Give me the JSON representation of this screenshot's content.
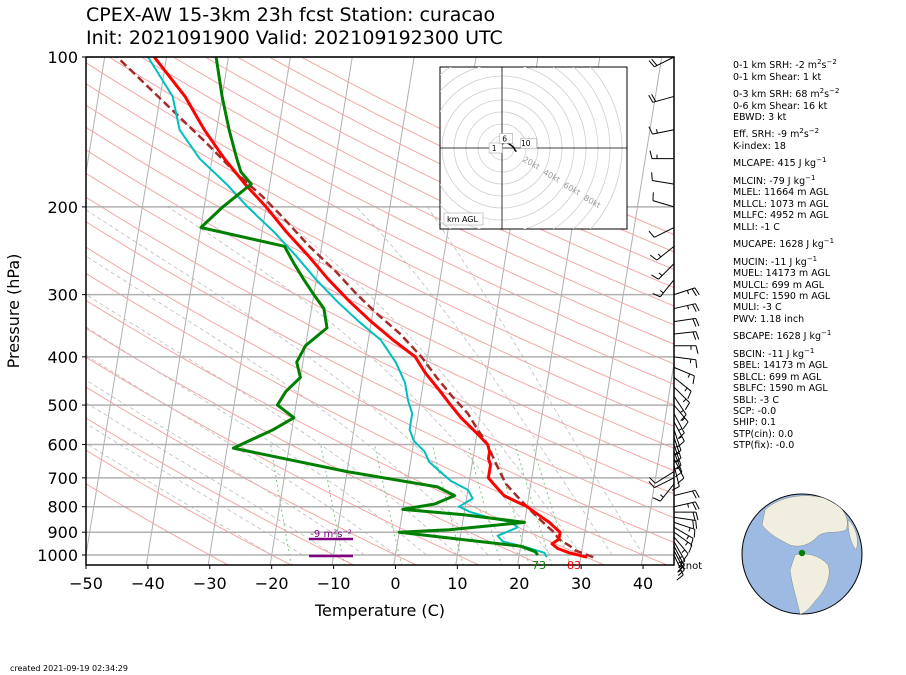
{
  "title": {
    "line1": "CPEX-AW 15-3km  23h fcst  Station: curacao",
    "line2": "Init: 2021091900  Valid: 202109192300 UTC"
  },
  "footer": "created 2021-09-19 02:34:29",
  "colors": {
    "temperature": "#ff0000",
    "dewpoint": "#008000",
    "wetbulb": "#00bfbf",
    "parcel": "#a52a2a",
    "srh_bar": "#800080",
    "hodo_line": "#000000",
    "globe_ocean": "#9dbbe2",
    "globe_land": "#f0efdf",
    "station_dot": "#008000"
  },
  "indices": [
    {
      "label": "0-1 km SRH: -2 m",
      "sup": "2",
      "tail": "s",
      "sup2": "−2",
      "gap": false
    },
    {
      "label": "0-1 km Shear: 1 kt",
      "gap": false
    },
    {
      "label": "0-3 km SRH: 68 m",
      "sup": "2",
      "tail": "s",
      "sup2": "−2",
      "gap": true
    },
    {
      "label": "0-6 km Shear: 16 kt",
      "gap": false
    },
    {
      "label": "EBWD: 3 kt",
      "gap": false
    },
    {
      "label": "Eff. SRH: -9 m",
      "sup": "2",
      "tail": "s",
      "sup2": "−2",
      "gap": true
    },
    {
      "label": "K-index: 18",
      "gap": false
    },
    {
      "label": "MLCAPE: 415 J kg",
      "sup": "−1",
      "gap": true
    },
    {
      "label": "MLCIN: -79 J kg",
      "sup": "−1",
      "gap": true
    },
    {
      "label": "MLEL: 11664 m AGL",
      "gap": false
    },
    {
      "label": "MLLCL: 1073 m AGL",
      "gap": false
    },
    {
      "label": "MLLFC: 4952 m AGL",
      "gap": false
    },
    {
      "label": "MLLI: -1 C",
      "gap": false
    },
    {
      "label": "MUCAPE: 1628 J kg",
      "sup": "−1",
      "gap": true
    },
    {
      "label": "MUCIN: -11 J kg",
      "sup": "−1",
      "gap": true
    },
    {
      "label": "MUEL: 14173 m AGL",
      "gap": false
    },
    {
      "label": "MULCL: 699 m AGL",
      "gap": false
    },
    {
      "label": "MULFC: 1590 m AGL",
      "gap": false
    },
    {
      "label": "MULI: -3 C",
      "gap": false
    },
    {
      "label": "PWV: 1.18 inch",
      "gap": false
    },
    {
      "label": "SBCAPE: 1628 J kg",
      "sup": "−1",
      "gap": true
    },
    {
      "label": "SBCIN: -11 J kg",
      "sup": "−1",
      "gap": true
    },
    {
      "label": "SBEL: 14173 m AGL",
      "gap": false
    },
    {
      "label": "SBLCL: 699 m AGL",
      "gap": false
    },
    {
      "label": "SBLFC: 1590 m AGL",
      "gap": false
    },
    {
      "label": "SBLI: -3 C",
      "gap": false
    },
    {
      "label": "SCP: -0.0",
      "gap": false
    },
    {
      "label": "SHIP: 0.1",
      "gap": false
    },
    {
      "label": "STP(cin): 0.0",
      "gap": false
    },
    {
      "label": "STP(fix): -0.0",
      "gap": false
    }
  ],
  "chart_data": {
    "type": "line",
    "xlabel": "Temperature (C)",
    "ylabel": "Pressure (hPa)",
    "xlim": [
      -50,
      45
    ],
    "ylim": [
      1050,
      100
    ],
    "y_scale": "log",
    "x_ticks": [
      -50,
      -40,
      -30,
      -20,
      -10,
      0,
      10,
      20,
      30,
      40
    ],
    "x_tick_labels": [
      "−50",
      "−40",
      "−30",
      "−20",
      "−10",
      "0",
      "10",
      "20",
      "30",
      "40"
    ],
    "y_ticks": [
      100,
      200,
      300,
      400,
      500,
      600,
      700,
      800,
      900,
      1000
    ],
    "grid": true,
    "surface_labels": {
      "dewpoint": "73",
      "temperature": "83"
    },
    "srh_label": "-9 m²s⁻²",
    "wind_unit_label": "knot",
    "series": [
      {
        "key": "temperature",
        "points": [
          [
            31,
            1010
          ],
          [
            28,
            990
          ],
          [
            26,
            970
          ],
          [
            25,
            950
          ],
          [
            26,
            930
          ],
          [
            26,
            900
          ],
          [
            25,
            880
          ],
          [
            24,
            860
          ],
          [
            22,
            830
          ],
          [
            20,
            800
          ],
          [
            18,
            780
          ],
          [
            16,
            760
          ],
          [
            15,
            740
          ],
          [
            14,
            720
          ],
          [
            13,
            700
          ],
          [
            13,
            680
          ],
          [
            13,
            660
          ],
          [
            12.5,
            640
          ],
          [
            12.5,
            620
          ],
          [
            12,
            600
          ],
          [
            10,
            570
          ],
          [
            7,
            530
          ],
          [
            5,
            500
          ],
          [
            3,
            470
          ],
          [
            0,
            430
          ],
          [
            -2,
            400
          ],
          [
            -6,
            370
          ],
          [
            -10,
            340
          ],
          [
            -14,
            310
          ],
          [
            -18,
            280
          ],
          [
            -22,
            250
          ],
          [
            -26,
            225
          ],
          [
            -30,
            200
          ],
          [
            -34,
            180
          ],
          [
            -38,
            160
          ],
          [
            -42,
            140
          ],
          [
            -46,
            120
          ],
          [
            -52,
            100
          ]
        ]
      },
      {
        "key": "dewpoint",
        "points": [
          [
            23,
            1000
          ],
          [
            22.5,
            985
          ],
          [
            20,
            960
          ],
          [
            10,
            930
          ],
          [
            0,
            900
          ],
          [
            8,
            890
          ],
          [
            20,
            860
          ],
          [
            10,
            830
          ],
          [
            0,
            810
          ],
          [
            5,
            790
          ],
          [
            8,
            760
          ],
          [
            5,
            730
          ],
          [
            -10,
            680
          ],
          [
            -29,
            610
          ],
          [
            -23,
            560
          ],
          [
            -20,
            530
          ],
          [
            -23,
            500
          ],
          [
            -22,
            470
          ],
          [
            -20,
            440
          ],
          [
            -21,
            410
          ],
          [
            -20,
            380
          ],
          [
            -17,
            350
          ],
          [
            -18,
            320
          ],
          [
            -20,
            300
          ],
          [
            -22,
            280
          ],
          [
            -24,
            260
          ],
          [
            -26,
            240
          ],
          [
            -40,
            220
          ],
          [
            -37,
            200
          ],
          [
            -33,
            180
          ],
          [
            -35,
            170
          ],
          [
            -36,
            160
          ],
          [
            -38,
            140
          ],
          [
            -40,
            120
          ],
          [
            -42,
            100
          ]
        ]
      },
      {
        "key": "wetbulb",
        "points": [
          [
            24.5,
            1010
          ],
          [
            24,
            990
          ],
          [
            21,
            965
          ],
          [
            17,
            940
          ],
          [
            16,
            915
          ],
          [
            19,
            880
          ],
          [
            18,
            860
          ],
          [
            14,
            840
          ],
          [
            11,
            820
          ],
          [
            9,
            800
          ],
          [
            11,
            770
          ],
          [
            10,
            740
          ],
          [
            7,
            710
          ],
          [
            5,
            680
          ],
          [
            3,
            650
          ],
          [
            2,
            620
          ],
          [
            0,
            590
          ],
          [
            -1,
            560
          ],
          [
            -1,
            520
          ],
          [
            -2,
            490
          ],
          [
            -3,
            450
          ],
          [
            -5,
            410
          ],
          [
            -8,
            370
          ],
          [
            -12,
            340
          ],
          [
            -16,
            310
          ],
          [
            -20,
            280
          ],
          [
            -24,
            250
          ],
          [
            -28,
            225
          ],
          [
            -33,
            200
          ],
          [
            -37,
            180
          ],
          [
            -42,
            160
          ],
          [
            -46,
            140
          ],
          [
            -48,
            120
          ],
          [
            -53,
            100
          ]
        ]
      },
      {
        "key": "parcel",
        "points": [
          [
            32,
            1010
          ],
          [
            29,
            980
          ],
          [
            28,
            960
          ],
          [
            26,
            930
          ],
          [
            25,
            900
          ],
          [
            24,
            880
          ],
          [
            23,
            860
          ],
          [
            22,
            840
          ],
          [
            21,
            820
          ],
          [
            20,
            800
          ],
          [
            19,
            780
          ],
          [
            18,
            760
          ],
          [
            16,
            720
          ],
          [
            15,
            690
          ],
          [
            14,
            660
          ],
          [
            13,
            630
          ],
          [
            12,
            600
          ],
          [
            10,
            560
          ],
          [
            8,
            520
          ],
          [
            5,
            480
          ],
          [
            2,
            440
          ],
          [
            -1,
            400
          ],
          [
            -5,
            360
          ],
          [
            -9,
            330
          ],
          [
            -13,
            300
          ],
          [
            -17,
            270
          ],
          [
            -22,
            240
          ],
          [
            -27,
            210
          ],
          [
            -31,
            190
          ],
          [
            -36,
            170
          ],
          [
            -41,
            150
          ],
          [
            -47,
            130
          ],
          [
            -54,
            110
          ],
          [
            -58,
            100
          ]
        ]
      }
    ],
    "wind_barbs": [
      {
        "p": 100,
        "u": -20,
        "v": -10
      },
      {
        "p": 120,
        "u": -18,
        "v": -5
      },
      {
        "p": 140,
        "u": -15,
        "v": -3
      },
      {
        "p": 160,
        "u": -15,
        "v": 0
      },
      {
        "p": 180,
        "u": -12,
        "v": 2
      },
      {
        "p": 200,
        "u": -10,
        "v": 3
      },
      {
        "p": 220,
        "u": -10,
        "v": -5
      },
      {
        "p": 240,
        "u": -10,
        "v": -8
      },
      {
        "p": 260,
        "u": -10,
        "v": -10
      },
      {
        "p": 280,
        "u": -8,
        "v": -10
      },
      {
        "p": 300,
        "u": 25,
        "v": 8
      },
      {
        "p": 320,
        "u": 22,
        "v": 5
      },
      {
        "p": 340,
        "u": 20,
        "v": 3
      },
      {
        "p": 360,
        "u": 18,
        "v": 2
      },
      {
        "p": 380,
        "u": 15,
        "v": 0
      },
      {
        "p": 400,
        "u": 15,
        "v": -2
      },
      {
        "p": 420,
        "u": 12,
        "v": -5
      },
      {
        "p": 440,
        "u": 10,
        "v": -8
      },
      {
        "p": 460,
        "u": 10,
        "v": -10
      },
      {
        "p": 480,
        "u": 8,
        "v": -12
      },
      {
        "p": 500,
        "u": 10,
        "v": -12
      },
      {
        "p": 520,
        "u": 8,
        "v": -15
      },
      {
        "p": 540,
        "u": 8,
        "v": -15
      },
      {
        "p": 560,
        "u": 5,
        "v": -15
      },
      {
        "p": 580,
        "u": 5,
        "v": -15
      },
      {
        "p": 600,
        "u": 5,
        "v": -15
      },
      {
        "p": 620,
        "u": 5,
        "v": -13
      },
      {
        "p": 640,
        "u": 5,
        "v": -10
      },
      {
        "p": 660,
        "u": 2,
        "v": -8
      },
      {
        "p": 680,
        "u": -8,
        "v": -5
      },
      {
        "p": 700,
        "u": -10,
        "v": -5
      },
      {
        "p": 720,
        "u": -8,
        "v": -10
      },
      {
        "p": 760,
        "u": 20,
        "v": 5
      },
      {
        "p": 800,
        "u": 22,
        "v": 5
      },
      {
        "p": 820,
        "u": 22,
        "v": 0
      },
      {
        "p": 840,
        "u": 20,
        "v": -3
      },
      {
        "p": 860,
        "u": 15,
        "v": -5
      },
      {
        "p": 880,
        "u": 14,
        "v": -8
      },
      {
        "p": 900,
        "u": 14,
        "v": -10
      },
      {
        "p": 920,
        "u": 10,
        "v": -12
      },
      {
        "p": 940,
        "u": 8,
        "v": -14
      },
      {
        "p": 960,
        "u": 8,
        "v": -15
      },
      {
        "p": 980,
        "u": 8,
        "v": -15
      },
      {
        "p": 1000,
        "u": 6,
        "v": -13
      }
    ],
    "hodograph": {
      "label": "km AGL",
      "ring_labels": [
        "20kt",
        "40kt",
        "60kt",
        "80kt"
      ],
      "height_labels": [
        "1",
        "6",
        "10"
      ],
      "points": [
        [
          -6,
          -2
        ],
        [
          -5,
          -1
        ],
        [
          -3,
          0
        ],
        [
          -1,
          2
        ],
        [
          1,
          4
        ],
        [
          3,
          5
        ],
        [
          5,
          4
        ],
        [
          8,
          2
        ],
        [
          10,
          0
        ],
        [
          11,
          -2
        ],
        [
          12,
          -3
        ]
      ]
    }
  }
}
